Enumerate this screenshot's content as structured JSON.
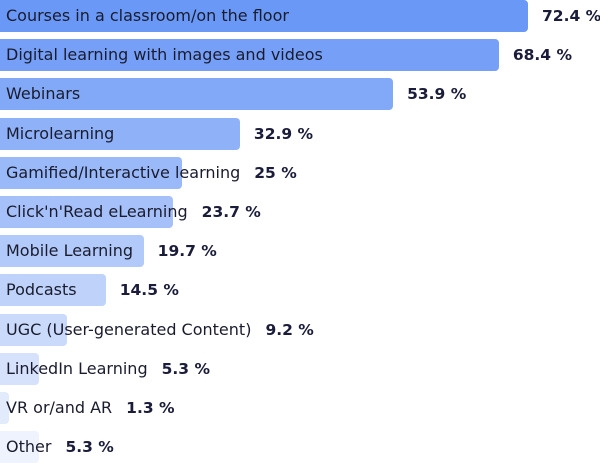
{
  "chart_data": {
    "type": "bar",
    "orientation": "horizontal",
    "unit": "%",
    "categories": [
      "Courses in a classroom/on the floor",
      "Digital learning with images and videos",
      "Webinars",
      "Microlearning",
      "Gamified/Interactive learning",
      "Click'n'Read eLearning",
      "Mobile Learning",
      "Podcasts",
      "UGC (User-generated Content)",
      "LinkedIn Learning",
      "VR or/and AR",
      "Other"
    ],
    "values": [
      72.4,
      68.4,
      53.9,
      32.9,
      25,
      23.7,
      19.7,
      14.5,
      9.2,
      5.3,
      1.3,
      5.3
    ],
    "value_labels": [
      "72.4 %",
      "68.4 %",
      "53.9 %",
      "32.9 %",
      "25 %",
      "23.7 %",
      "19.7 %",
      "14.5 %",
      "9.2 %",
      "5.3 %",
      "1.3 %",
      "5.3 %"
    ],
    "title": "",
    "xlabel": "",
    "ylabel": "",
    "xlim": [
      0,
      72.4
    ],
    "grid": false,
    "legend": "none",
    "colors": {
      "bar_darkest": "#6a98f6",
      "bar_lightest": "#eef3fd",
      "label_text": "#1a1c2e",
      "value_text": "#1a1c3a"
    }
  }
}
